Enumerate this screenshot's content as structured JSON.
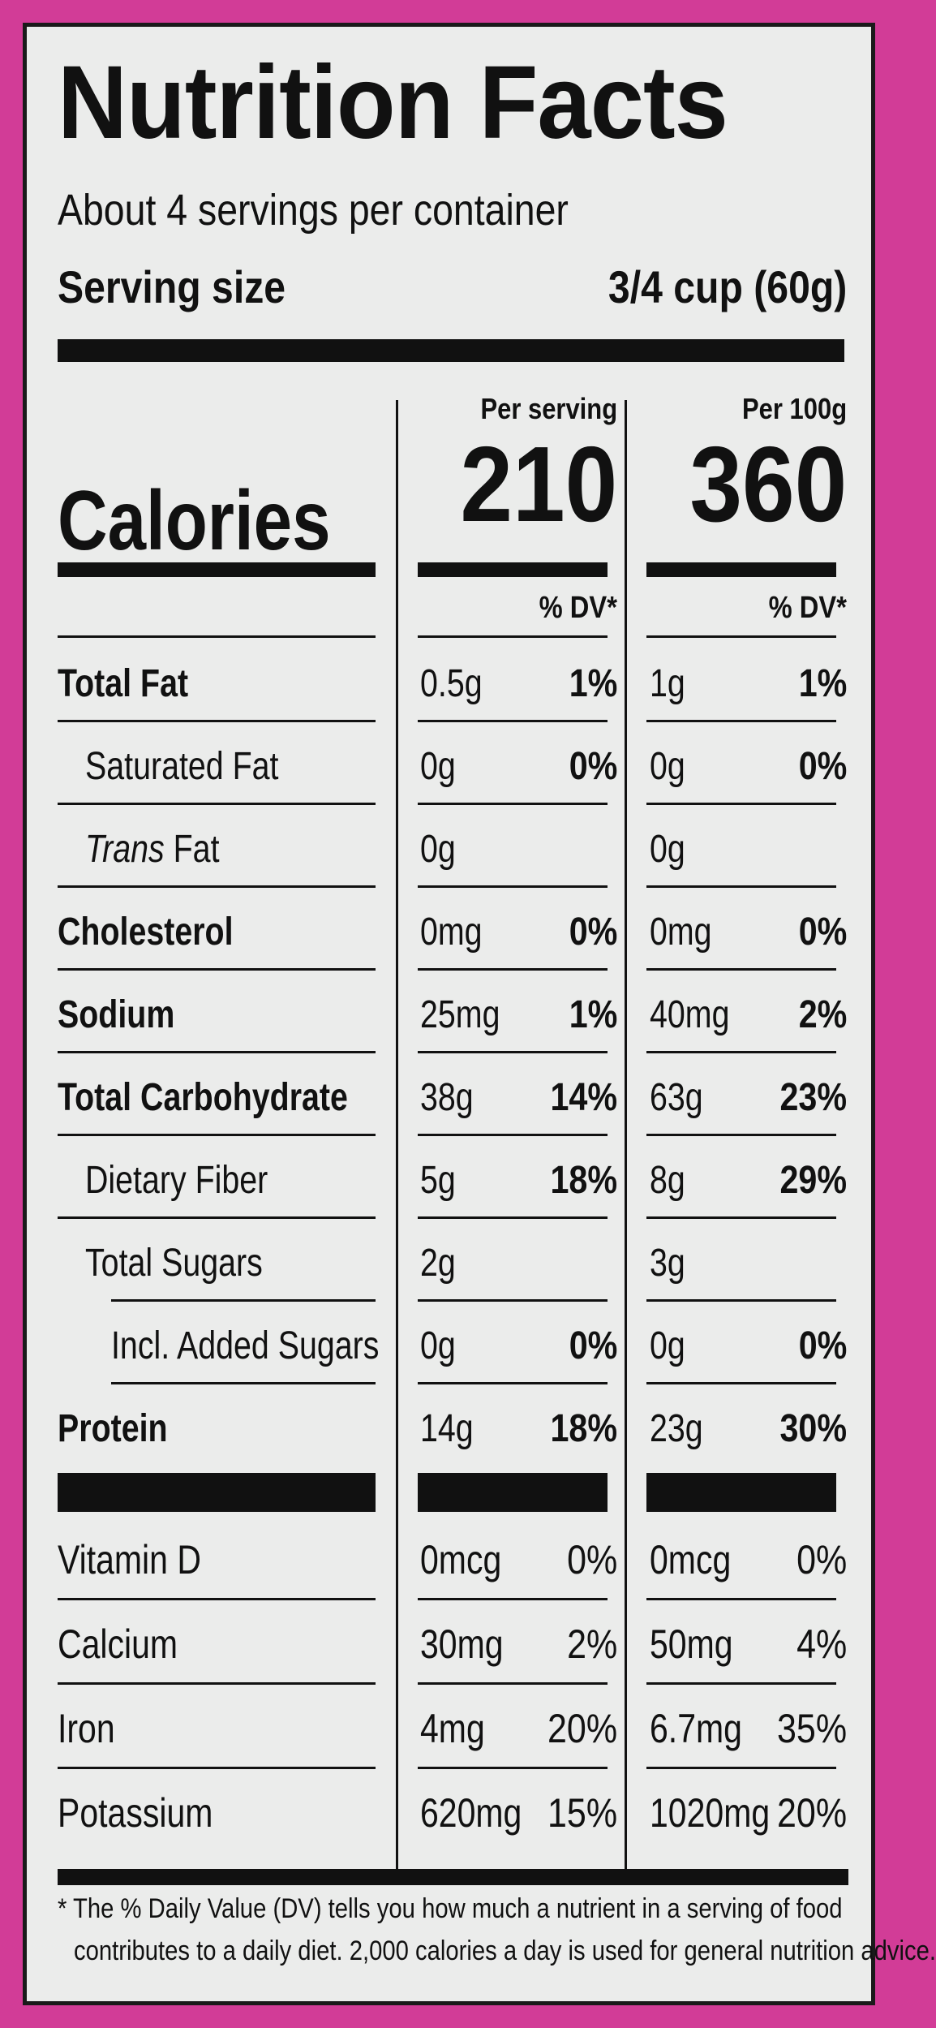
{
  "title": "Nutrition Facts",
  "servings_per_container": "About 4 servings per container",
  "serving_size_label": "Serving size",
  "serving_size_value": "3/4 cup (60g)",
  "columns": [
    {
      "header": "Per serving",
      "calories": "210",
      "dv_header": "% DV*"
    },
    {
      "header": "Per 100g",
      "calories": "360",
      "dv_header": "% DV*"
    }
  ],
  "calories_label": "Calories",
  "nutrients": [
    {
      "name": "Total Fat",
      "emphasis": "bold",
      "values": [
        {
          "amount": "0.5g",
          "dv": "1%"
        },
        {
          "amount": "1g",
          "dv": "1%"
        }
      ]
    },
    {
      "name": "Saturated Fat",
      "emphasis": "indent",
      "values": [
        {
          "amount": "0g",
          "dv": "0%"
        },
        {
          "amount": "0g",
          "dv": "0%"
        }
      ]
    },
    {
      "name_italic": "Trans",
      "name": " Fat",
      "emphasis": "indent",
      "values": [
        {
          "amount": "0g",
          "dv": ""
        },
        {
          "amount": "0g",
          "dv": ""
        }
      ]
    },
    {
      "name": "Cholesterol",
      "emphasis": "bold",
      "values": [
        {
          "amount": "0mg",
          "dv": "0%"
        },
        {
          "amount": "0mg",
          "dv": "0%"
        }
      ]
    },
    {
      "name": "Sodium",
      "emphasis": "bold",
      "values": [
        {
          "amount": "25mg",
          "dv": "1%"
        },
        {
          "amount": "40mg",
          "dv": "2%"
        }
      ]
    },
    {
      "name": "Total Carbohydrate",
      "emphasis": "bold",
      "values": [
        {
          "amount": "38g",
          "dv": "14%"
        },
        {
          "amount": "63g",
          "dv": "23%"
        }
      ]
    },
    {
      "name": "Dietary Fiber",
      "emphasis": "indent",
      "values": [
        {
          "amount": "5g",
          "dv": "18%"
        },
        {
          "amount": "8g",
          "dv": "29%"
        }
      ]
    },
    {
      "name": "Total Sugars",
      "emphasis": "indent",
      "values": [
        {
          "amount": "2g",
          "dv": ""
        },
        {
          "amount": "3g",
          "dv": ""
        }
      ]
    },
    {
      "name": "Incl. Added Sugars",
      "emphasis": "indent2",
      "values": [
        {
          "amount": "0g",
          "dv": "0%"
        },
        {
          "amount": "0g",
          "dv": "0%"
        }
      ]
    },
    {
      "name": "Protein",
      "emphasis": "bold",
      "values": [
        {
          "amount": "14g",
          "dv": "18%"
        },
        {
          "amount": "23g",
          "dv": "30%"
        }
      ]
    }
  ],
  "vitamins": [
    {
      "name": "Vitamin D",
      "values": [
        {
          "amount": "0mcg",
          "dv": "0%"
        },
        {
          "amount": "0mcg",
          "dv": "0%"
        }
      ]
    },
    {
      "name": "Calcium",
      "values": [
        {
          "amount": "30mg",
          "dv": "2%"
        },
        {
          "amount": "50mg",
          "dv": "4%"
        }
      ]
    },
    {
      "name": "Iron",
      "values": [
        {
          "amount": "4mg",
          "dv": "20%"
        },
        {
          "amount": "6.7mg",
          "dv": "35%"
        }
      ]
    },
    {
      "name": "Potassium",
      "values": [
        {
          "amount": "620mg",
          "dv": "15%"
        },
        {
          "amount": "1020mg",
          "dv": "20%"
        }
      ]
    }
  ],
  "footnote_line1": "* The % Daily Value (DV) tells you how much a nutrient in a serving of food",
  "footnote_line2": "contributes to a daily diet. 2,000 calories a day is used for general nutrition advice.",
  "colors": {
    "border_background": "#d23c97",
    "panel": "#ebeceb",
    "ink": "#111111"
  }
}
